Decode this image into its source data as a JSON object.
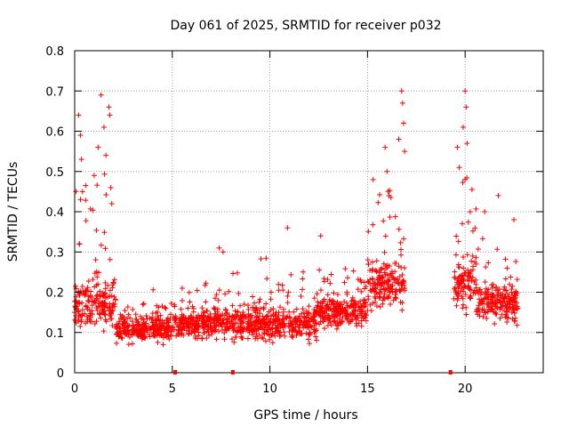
{
  "chart_data": {
    "type": "scatter",
    "title": "Day 061 of 2025, SRMTID for receiver p032",
    "xlabel": "GPS time / hours",
    "ylabel": "SRMTID / TECUs",
    "xlim": [
      0,
      24
    ],
    "ylim": [
      0,
      0.8
    ],
    "xticks": [
      0,
      5,
      10,
      15,
      20
    ],
    "xtick_labels": [
      "0",
      "5",
      "10",
      "15",
      "20"
    ],
    "yticks": [
      0,
      0.1,
      0.2,
      0.3,
      0.4,
      0.5,
      0.6,
      0.7,
      0.8
    ],
    "ytick_labels": [
      "0",
      "0.1",
      "0.2",
      "0.3",
      "0.4",
      "0.5",
      "0.6",
      "0.7",
      "0.8"
    ],
    "grid": true,
    "marker": "+",
    "color": "#ff0000",
    "gap_markers_x": [
      5.15,
      8.1,
      19.25
    ],
    "segments": [
      {
        "x0": 0.0,
        "x1": 2.1,
        "base": 0.17,
        "spread": 0.09,
        "peak": 0.69
      },
      {
        "x0": 2.1,
        "x1": 5.1,
        "base": 0.11,
        "spread": 0.05,
        "peak": 0.23
      },
      {
        "x0": 5.1,
        "x1": 8.0,
        "base": 0.12,
        "spread": 0.05,
        "peak": 0.31
      },
      {
        "x0": 8.0,
        "x1": 12.4,
        "base": 0.12,
        "spread": 0.06,
        "peak": 0.36
      },
      {
        "x0": 12.4,
        "x1": 15.0,
        "base": 0.15,
        "spread": 0.06,
        "peak": 0.34
      },
      {
        "x0": 15.0,
        "x1": 16.9,
        "base": 0.22,
        "spread": 0.09,
        "peak": 0.7
      },
      {
        "x0": 19.4,
        "x1": 20.6,
        "base": 0.22,
        "spread": 0.1,
        "peak": 0.7
      },
      {
        "x0": 20.6,
        "x1": 22.7,
        "base": 0.17,
        "spread": 0.07,
        "peak": 0.44
      }
    ],
    "highlight_points": [
      {
        "x": 0.2,
        "y": 0.64
      },
      {
        "x": 0.3,
        "y": 0.59
      },
      {
        "x": 0.35,
        "y": 0.53
      },
      {
        "x": 0.4,
        "y": 0.45
      },
      {
        "x": 1.0,
        "y": 0.49
      },
      {
        "x": 1.2,
        "y": 0.56
      },
      {
        "x": 1.35,
        "y": 0.69
      },
      {
        "x": 1.5,
        "y": 0.61
      },
      {
        "x": 1.6,
        "y": 0.54
      },
      {
        "x": 1.75,
        "y": 0.66
      },
      {
        "x": 1.8,
        "y": 0.64
      },
      {
        "x": 1.85,
        "y": 0.46
      },
      {
        "x": 1.9,
        "y": 0.42
      },
      {
        "x": 7.4,
        "y": 0.31
      },
      {
        "x": 7.6,
        "y": 0.3
      },
      {
        "x": 10.9,
        "y": 0.36
      },
      {
        "x": 12.6,
        "y": 0.34
      },
      {
        "x": 15.9,
        "y": 0.56
      },
      {
        "x": 16.0,
        "y": 0.5
      },
      {
        "x": 16.1,
        "y": 0.44
      },
      {
        "x": 16.6,
        "y": 0.58
      },
      {
        "x": 16.75,
        "y": 0.7
      },
      {
        "x": 16.8,
        "y": 0.67
      },
      {
        "x": 16.85,
        "y": 0.62
      },
      {
        "x": 16.9,
        "y": 0.55
      },
      {
        "x": 19.6,
        "y": 0.56
      },
      {
        "x": 19.7,
        "y": 0.51
      },
      {
        "x": 19.9,
        "y": 0.61
      },
      {
        "x": 20.0,
        "y": 0.7
      },
      {
        "x": 20.05,
        "y": 0.66
      },
      {
        "x": 20.1,
        "y": 0.57
      },
      {
        "x": 20.0,
        "y": 0.48
      },
      {
        "x": 21.0,
        "y": 0.4
      },
      {
        "x": 21.7,
        "y": 0.44
      },
      {
        "x": 22.5,
        "y": 0.38
      }
    ]
  }
}
